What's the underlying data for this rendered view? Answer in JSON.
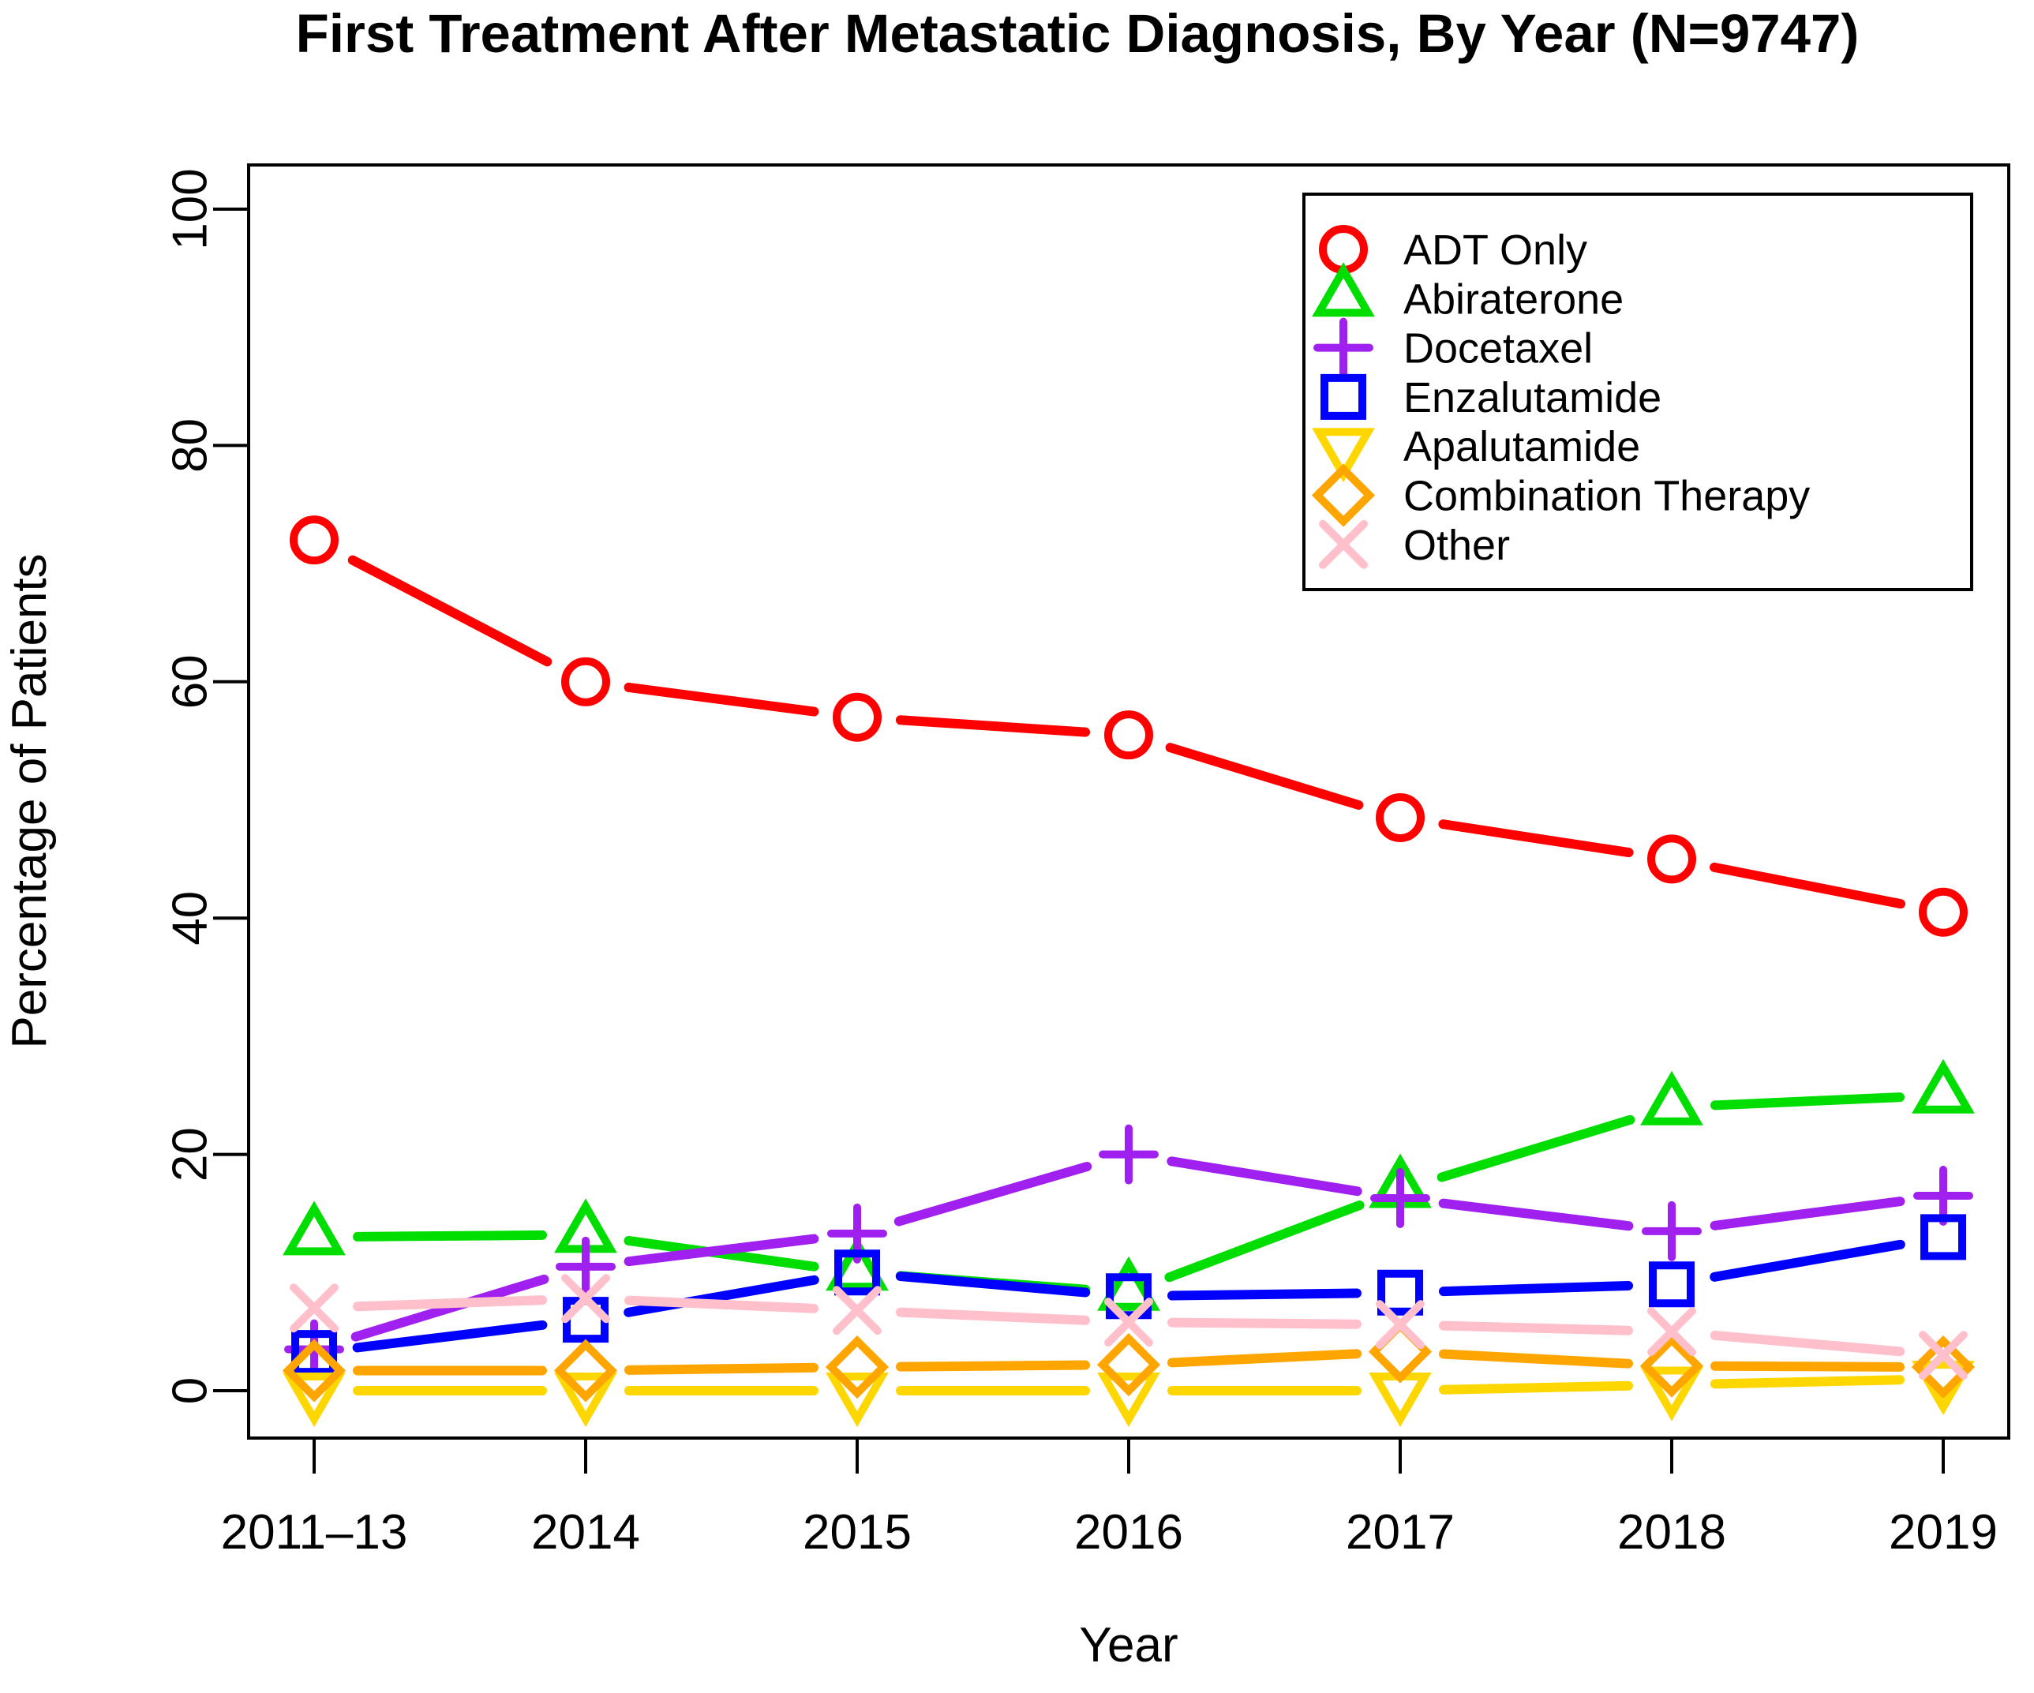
{
  "chart_data": {
    "type": "line",
    "title": "First Treatment After Metastatic Diagnosis, By Year (N=9747)",
    "xlabel": "Year",
    "ylabel": "Percentage of Patients",
    "categories": [
      "2011–13",
      "2014",
      "2015",
      "2016",
      "2017",
      "2018",
      "2019"
    ],
    "yticks": [
      0,
      20,
      40,
      60,
      80,
      100
    ],
    "ylim": [
      0,
      100
    ],
    "grid": false,
    "legend_position": "top-right",
    "series": [
      {
        "name": "ADT Only",
        "marker": "circle",
        "color": "#FF0000",
        "values": [
          72,
          60,
          57,
          55.5,
          48.5,
          45,
          40.5
        ]
      },
      {
        "name": "Abiraterone",
        "marker": "triangle-up",
        "color": "#00DD00",
        "values": [
          13,
          13.2,
          10,
          8.3,
          17,
          24,
          25
        ]
      },
      {
        "name": "Docetaxel",
        "marker": "plus",
        "color": "#A020F0",
        "values": [
          3.5,
          10.5,
          13.3,
          20,
          16.3,
          13.5,
          16.5
        ]
      },
      {
        "name": "Enzalutamide",
        "marker": "square",
        "color": "#0000FF",
        "values": [
          3.2,
          6,
          10,
          8,
          8.3,
          9,
          13
        ]
      },
      {
        "name": "Apalutamide",
        "marker": "triangle-down",
        "color": "#FFD700",
        "values": [
          0,
          0,
          0,
          0,
          0,
          0.5,
          1
        ]
      },
      {
        "name": "Combination Therapy",
        "marker": "diamond",
        "color": "#FFA500",
        "values": [
          1.7,
          1.7,
          2,
          2.2,
          3.3,
          2.1,
          2
        ]
      },
      {
        "name": "Other",
        "marker": "x",
        "color": "#FFC0CB",
        "values": [
          7,
          7.8,
          6.8,
          5.8,
          5.6,
          5,
          3
        ]
      }
    ]
  }
}
